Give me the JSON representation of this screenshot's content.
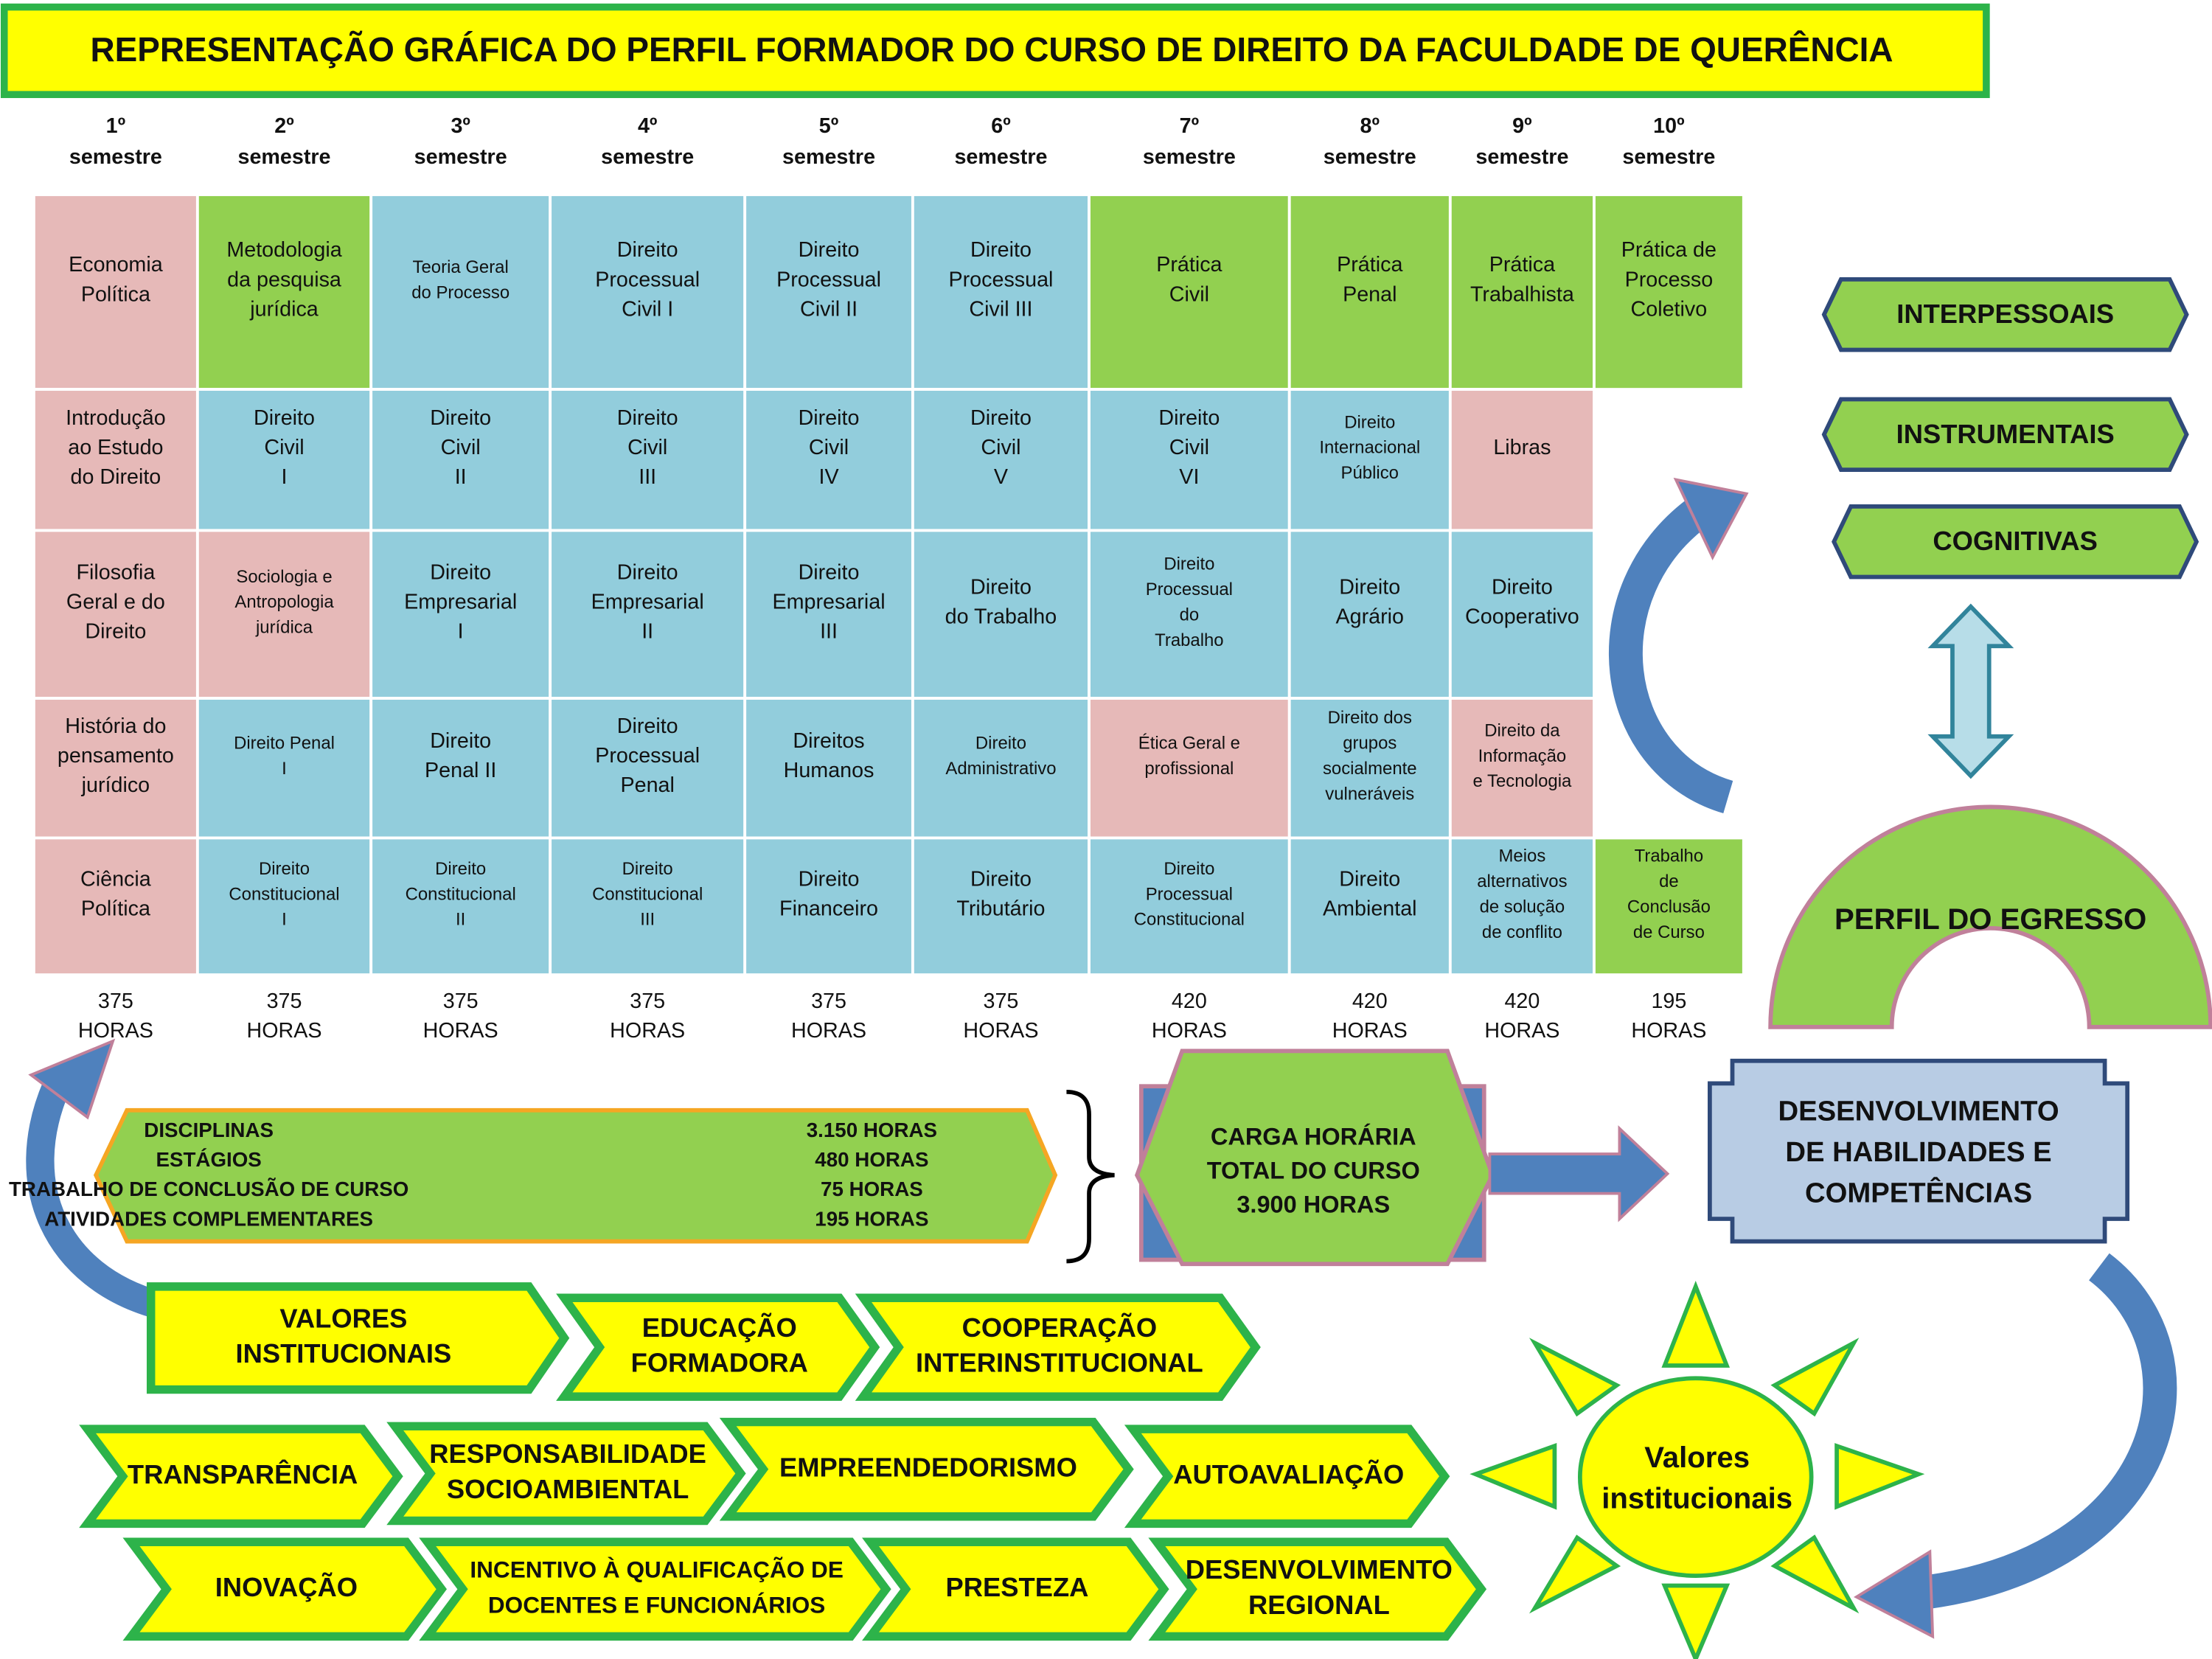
{
  "title": "REPRESENTAÇÃO GRÁFICA DO PERFIL FORMADOR DO CURSO DE DIREITO DA FACULDADE DE QUERÊNCIA",
  "semesters": [
    {
      "label": [
        "1º",
        "semestre"
      ],
      "hours": [
        "375",
        "HORAS"
      ],
      "cells": [
        {
          "color": "#e6b9b8",
          "lines": [
            "Economia",
            "Política"
          ]
        },
        {
          "color": "#e6b9b8",
          "lines": [
            "Introdução",
            "ao Estudo",
            "do Direito"
          ]
        },
        {
          "color": "#e6b9b8",
          "lines": [
            "Filosofia",
            "Geral e do",
            "Direito"
          ]
        },
        {
          "color": "#e6b9b8",
          "lines": [
            "História do",
            "pensamento",
            "jurídico"
          ]
        },
        {
          "color": "#e6b9b8",
          "lines": [
            "Ciência",
            "Política"
          ]
        }
      ]
    },
    {
      "label": [
        "2º",
        "semestre"
      ],
      "hours": [
        "375",
        "HORAS"
      ],
      "cells": [
        {
          "color": "#92d050",
          "lines": [
            "Metodologia",
            "da pesquisa",
            "jurídica"
          ]
        },
        {
          "color": "#92cddc",
          "lines": [
            "Direito",
            "Civil",
            "I"
          ]
        },
        {
          "color": "#e6b9b8",
          "lines": [
            "Sociologia e",
            "Antropologia",
            "jurídica"
          ]
        },
        {
          "color": "#92cddc",
          "lines": [
            "Direito Penal",
            "I"
          ]
        },
        {
          "color": "#92cddc",
          "lines": [
            "Direito",
            "Constitucional",
            "I"
          ]
        }
      ]
    },
    {
      "label": [
        "3º",
        "semestre"
      ],
      "hours": [
        "375",
        "HORAS"
      ],
      "cells": [
        {
          "color": "#92cddc",
          "lines": [
            "Teoria Geral",
            "do Processo"
          ]
        },
        {
          "color": "#92cddc",
          "lines": [
            "Direito",
            "Civil",
            "II"
          ]
        },
        {
          "color": "#92cddc",
          "lines": [
            "Direito",
            "Empresarial",
            "I"
          ]
        },
        {
          "color": "#92cddc",
          "lines": [
            "Direito",
            "Penal II"
          ]
        },
        {
          "color": "#92cddc",
          "lines": [
            "Direito",
            "Constitucional",
            "II"
          ]
        }
      ]
    },
    {
      "label": [
        "4º",
        "semestre"
      ],
      "hours": [
        "375",
        "HORAS"
      ],
      "cells": [
        {
          "color": "#92cddc",
          "lines": [
            "Direito",
            "Processual",
            "Civil I"
          ]
        },
        {
          "color": "#92cddc",
          "lines": [
            "Direito",
            "Civil",
            "III"
          ]
        },
        {
          "color": "#92cddc",
          "lines": [
            "Direito",
            "Empresarial",
            "II"
          ]
        },
        {
          "color": "#92cddc",
          "lines": [
            "Direito",
            "Processual",
            "Penal"
          ]
        },
        {
          "color": "#92cddc",
          "lines": [
            "Direito",
            "Constitucional",
            "III"
          ]
        }
      ]
    },
    {
      "label": [
        "5º",
        "semestre"
      ],
      "hours": [
        "375",
        "HORAS"
      ],
      "cells": [
        {
          "color": "#92cddc",
          "lines": [
            "Direito",
            "Processual",
            "Civil II"
          ]
        },
        {
          "color": "#92cddc",
          "lines": [
            "Direito",
            "Civil",
            "IV"
          ]
        },
        {
          "color": "#92cddc",
          "lines": [
            "Direito",
            "Empresarial",
            "III"
          ]
        },
        {
          "color": "#92cddc",
          "lines": [
            "Direitos",
            "Humanos"
          ]
        },
        {
          "color": "#92cddc",
          "lines": [
            "Direito",
            "Financeiro"
          ]
        }
      ]
    },
    {
      "label": [
        "6º",
        "semestre"
      ],
      "hours": [
        "375",
        "HORAS"
      ],
      "cells": [
        {
          "color": "#92cddc",
          "lines": [
            "Direito",
            "Processual",
            "Civil III"
          ]
        },
        {
          "color": "#92cddc",
          "lines": [
            "Direito",
            "Civil",
            "V"
          ]
        },
        {
          "color": "#92cddc",
          "lines": [
            "Direito",
            "do Trabalho"
          ]
        },
        {
          "color": "#92cddc",
          "lines": [
            "Direito",
            "Administrativo"
          ]
        },
        {
          "color": "#92cddc",
          "lines": [
            "Direito",
            "Tributário"
          ]
        }
      ]
    },
    {
      "label": [
        "7º",
        "semestre"
      ],
      "hours": [
        "420",
        "HORAS"
      ],
      "cells": [
        {
          "color": "#92d050",
          "lines": [
            "Prática",
            "Civil"
          ]
        },
        {
          "color": "#92cddc",
          "lines": [
            "Direito",
            "Civil",
            "VI"
          ]
        },
        {
          "color": "#92cddc",
          "lines": [
            "Direito",
            "Processual",
            "do",
            "Trabalho"
          ]
        },
        {
          "color": "#e6b9b8",
          "lines": [
            "Ética Geral e",
            "profissional"
          ]
        },
        {
          "color": "#92cddc",
          "lines": [
            "Direito",
            "Processual",
            "Constitucional"
          ]
        }
      ]
    },
    {
      "label": [
        "8º",
        "semestre"
      ],
      "hours": [
        "420",
        "HORAS"
      ],
      "cells": [
        {
          "color": "#92d050",
          "lines": [
            "Prática",
            "Penal"
          ]
        },
        {
          "color": "#92cddc",
          "lines": [
            "Direito",
            "Internacional",
            "Público"
          ]
        },
        {
          "color": "#92cddc",
          "lines": [
            "Direito",
            "Agrário"
          ]
        },
        {
          "color": "#92cddc",
          "lines": [
            "Direito dos",
            "grupos",
            "socialmente",
            "vulneráveis"
          ]
        },
        {
          "color": "#92cddc",
          "lines": [
            "Direito",
            "Ambiental"
          ]
        }
      ]
    },
    {
      "label": [
        "9º",
        "semestre"
      ],
      "hours": [
        "420",
        "HORAS"
      ],
      "cells": [
        {
          "color": "#92d050",
          "lines": [
            "Prática",
            "Trabalhista"
          ]
        },
        {
          "color": "#e6b9b8",
          "lines": [
            "Libras"
          ]
        },
        {
          "color": "#92cddc",
          "lines": [
            "Direito",
            "Cooperativo"
          ]
        },
        {
          "color": "#e6b9b8",
          "lines": [
            "Direito da",
            "Informação",
            "e Tecnologia"
          ]
        },
        {
          "color": "#92cddc",
          "lines": [
            "Meios",
            "alternativos",
            "de solução",
            "de conflito"
          ]
        }
      ]
    },
    {
      "label": [
        "10º",
        "semestre"
      ],
      "hours": [
        "195",
        "HORAS"
      ],
      "cells": [
        {
          "color": "#92d050",
          "lines": [
            "Prática de",
            "Processo",
            "Coletivo"
          ]
        },
        null,
        null,
        null,
        {
          "color": "#92d050",
          "lines": [
            "Trabalho",
            "de",
            "Conclusão",
            "de Curso"
          ]
        }
      ]
    }
  ],
  "workload": {
    "items": [
      {
        "label": "DISCIPLINAS",
        "hours": "3.150 HORAS"
      },
      {
        "label": "ESTÁGIOS",
        "hours": "480 HORAS"
      },
      {
        "label": "TRABALHO DE CONCLUSÃO DE CURSO",
        "hours": "75 HORAS"
      },
      {
        "label": "ATIVIDADES COMPLEMENTARES",
        "hours": "195 HORAS"
      }
    ],
    "total": [
      "CARGA HORÁRIA",
      "TOTAL DO CURSO",
      "3.900 HORAS"
    ]
  },
  "competences": [
    "INTERPESSOAIS",
    "INSTRUMENTAIS",
    "COGNITIVAS"
  ],
  "profile": "PERFIL DO EGRESSO",
  "development": [
    "DESENVOLVIMENTO",
    "DE HABILIDADES E",
    "COMPETÊNCIAS"
  ],
  "values": [
    [
      [
        "VALORES",
        "INSTITUCIONAIS"
      ],
      [
        "EDUCAÇÃO",
        "FORMADORA"
      ],
      [
        "COOPERAÇÃO",
        "INTERINSTITUCIONAL"
      ]
    ],
    [
      [
        "TRANSPARÊNCIA"
      ],
      [
        "RESPONSABILIDADE",
        "SOCIOAMBIENTAL"
      ],
      [
        "EMPREENDEDORISMO"
      ],
      [
        "AUTOAVALIAÇÃO"
      ]
    ],
    [
      [
        "INOVAÇÃO"
      ],
      [
        "INCENTIVO À QUALIFICAÇÃO DE",
        "DOCENTES E FUNCIONÁRIOS"
      ],
      [
        "PRESTEZA"
      ],
      [
        "DESENVOLVIMENTO",
        "REGIONAL"
      ]
    ]
  ],
  "sun": [
    "Valores",
    "institucionais"
  ]
}
